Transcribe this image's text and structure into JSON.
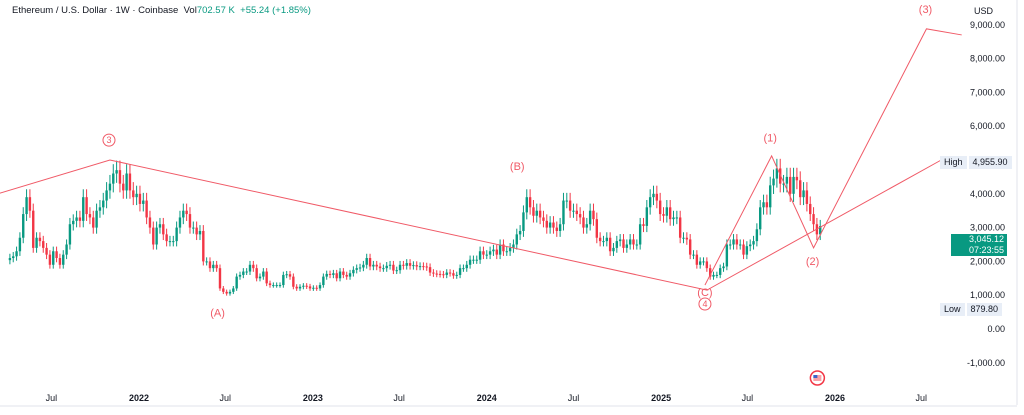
{
  "header": {
    "symbol": "Ethereum / U.S. Dollar · 1W · Coinbase",
    "vol_label": "Vol",
    "vol_value": "702.57 K",
    "change": "+55.24 (+1.85%)"
  },
  "currency": "USD",
  "high": {
    "label": "High",
    "value": "4,955.90"
  },
  "low": {
    "label": "Low",
    "value": "879.80"
  },
  "last_price": {
    "value": "3,045.12",
    "countdown": "07:23:55"
  },
  "colors": {
    "up": "#089981",
    "down": "#f23645",
    "annotation": "#f05a67",
    "last_price_bg": "#089981"
  },
  "chart_data": {
    "type": "candlestick",
    "interval": "1W",
    "first_week": "2021-04-05",
    "weekly_close": [
      2100,
      2150,
      2300,
      2700,
      3400,
      3900,
      3500,
      2400,
      2700,
      2600,
      2400,
      2200,
      1900,
      2300,
      2100,
      1900,
      2200,
      2500,
      3100,
      3200,
      3300,
      3200,
      3900,
      3400,
      3300,
      3000,
      3500,
      3600,
      3800,
      4100,
      4300,
      4600,
      4700,
      4300,
      4100,
      4600,
      4100,
      3900,
      4000,
      3700,
      3800,
      3300,
      3000,
      2500,
      3000,
      3100,
      2800,
      2600,
      2600,
      2600,
      3000,
      3300,
      3500,
      3400,
      3000,
      3000,
      2800,
      2900,
      2000,
      2000,
      1800,
      1900,
      1800,
      1200,
      1100,
      1050,
      1100,
      1200,
      1550,
      1600,
      1700,
      1700,
      1900,
      1800,
      1500,
      1550,
      1700,
      1350,
      1300,
      1300,
      1300,
      1300,
      1600,
      1620,
      1550,
      1250,
      1200,
      1250,
      1280,
      1260,
      1200,
      1220,
      1200,
      1300,
      1550,
      1630,
      1600,
      1650,
      1500,
      1700,
      1600,
      1550,
      1650,
      1750,
      1800,
      1820,
      1900,
      2100,
      1850,
      1900,
      1850,
      1800,
      1800,
      1870,
      1900,
      1730,
      1740,
      1900,
      1870,
      1950,
      1870,
      1890,
      1850,
      1860,
      1850,
      1830,
      1670,
      1640,
      1630,
      1620,
      1600,
      1670,
      1650,
      1580,
      1600,
      1800,
      1800,
      1900,
      2050,
      2050,
      2050,
      2300,
      2200,
      2200,
      2300,
      2350,
      2200,
      2500,
      2300,
      2300,
      2400,
      2500,
      2800,
      2900,
      3450,
      3900,
      3600,
      3350,
      3500,
      3300,
      3200,
      3000,
      3150,
      3000,
      2900,
      3100,
      3800,
      3800,
      3500,
      3500,
      3400,
      3300,
      3000,
      3100,
      3500,
      3250,
      2700,
      2600,
      2600,
      2700,
      2300,
      2400,
      2600,
      2650,
      2400,
      2500,
      2650,
      2500,
      2500,
      3100,
      3050,
      3600,
      3900,
      4000,
      3800,
      3400,
      3350,
      3600,
      3250,
      3300,
      3300,
      2700,
      2700,
      2650,
      2200,
      2200,
      1900,
      2000,
      2000,
      1800,
      1550,
      1600,
      1600,
      1800,
      1850,
      2500,
      2500,
      2650,
      2500,
      2500,
      2200,
      2450,
      2500,
      2600,
      2950,
      3600,
      3750,
      3600,
      4250,
      4450,
      4750,
      4300,
      4300,
      4500,
      4000,
      4500,
      4400,
      3900,
      4100,
      3700,
      3400,
      3100,
      2800,
      3045
    ],
    "y_ticks": [
      -1000,
      0,
      1000,
      2000,
      3000,
      4000,
      5000,
      6000,
      7000,
      8000,
      9000
    ],
    "y_tick_labels": [
      "-1,000.00",
      "0.00",
      "1,000.00",
      "2,000.00",
      "3,000.00",
      "4,000.00",
      "",
      "6,000.00",
      "7,000.00",
      "8,000.00",
      "9,000.00"
    ],
    "x_ticks": [
      {
        "date": "2021-07-01",
        "label": "Jul"
      },
      {
        "date": "2022-01-01",
        "label": "2022"
      },
      {
        "date": "2022-07-01",
        "label": "Jul"
      },
      {
        "date": "2023-01-01",
        "label": "2023"
      },
      {
        "date": "2023-07-01",
        "label": "Jul"
      },
      {
        "date": "2024-01-01",
        "label": "2024"
      },
      {
        "date": "2024-07-01",
        "label": "Jul"
      },
      {
        "date": "2025-01-01",
        "label": "2025"
      },
      {
        "date": "2025-07-01",
        "label": "Jul"
      },
      {
        "date": "2026-01-01",
        "label": "2026"
      },
      {
        "date": "2026-07-01",
        "label": "Jul"
      }
    ],
    "annotation_lines": [
      [
        {
          "date": "2021-03-15",
          "price": 4020
        },
        {
          "date": "2021-11-01",
          "price": 5000
        },
        {
          "date": "2025-04-07",
          "price": 1150
        },
        {
          "date": "2026-08-12",
          "price": 5000
        }
      ],
      [
        {
          "date": "2025-04-03",
          "price": 1300
        },
        {
          "date": "2025-08-21",
          "price": 5120
        },
        {
          "date": "2025-11-17",
          "price": 2400
        },
        {
          "date": "2026-07-12",
          "price": 8880
        },
        {
          "date": "2026-09-24",
          "price": 8700
        }
      ]
    ],
    "wave_labels": [
      {
        "text": "3",
        "circled": true,
        "date": "2021-10-30",
        "price": 5500
      },
      {
        "text": "(A)",
        "date": "2022-06-15",
        "price": 370
      },
      {
        "text": "(B)",
        "date": "2024-03-05",
        "price": 4700
      },
      {
        "text": "(C)",
        "date": "2025-04-03",
        "price": 980
      },
      {
        "text": "4",
        "circled": true,
        "date": "2025-04-03",
        "price": 650
      },
      {
        "text": "(1)",
        "date": "2025-08-18",
        "price": 5550
      },
      {
        "text": "(2)",
        "date": "2025-11-15",
        "price": 1900
      },
      {
        "text": "(3)",
        "date": "2026-07-10",
        "price": 9350
      }
    ]
  }
}
